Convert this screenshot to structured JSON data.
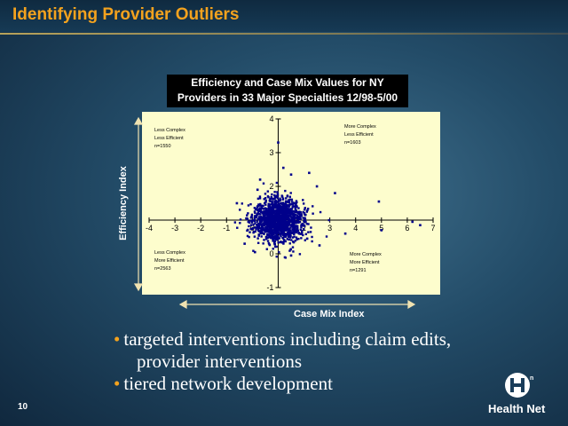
{
  "slide": {
    "title": "Identifying Provider Outliers",
    "number": "10",
    "bullets": [
      {
        "line1": "targeted interventions including claim edits,",
        "line2": "provider interventions"
      },
      {
        "line1": "tiered network development",
        "line2": ""
      }
    ],
    "logo_text": "Health Net"
  },
  "chart_data": {
    "type": "scatter",
    "title": "Efficiency and Case Mix Values for NY Providers in 33 Major Specialties 12/98-5/00",
    "xlabel": "Case Mix Index",
    "ylabel": "Efficiency Index",
    "xlim": [
      -4,
      7
    ],
    "ylim": [
      -1,
      4
    ],
    "x_ticks": [
      "-4",
      "-3",
      "-2",
      "-1",
      "0",
      "1",
      "2",
      "3",
      "4",
      "5",
      "6",
      "7"
    ],
    "y_ticks": [
      "-1",
      "0",
      "1",
      "2",
      "3",
      "4"
    ],
    "grid": false,
    "marker_color": "#00008b",
    "quadrants": [
      {
        "position": "top-left",
        "lines": [
          "Less Complex",
          "Less Efficient",
          "n=1550"
        ]
      },
      {
        "position": "top-right",
        "lines": [
          "More Complex",
          "Less Efficient",
          "n=1603"
        ]
      },
      {
        "position": "bottom-left",
        "lines": [
          "Less Complex",
          "More Efficient",
          "n=2563"
        ]
      },
      {
        "position": "bottom-right",
        "lines": [
          "More Complex",
          "More Efficient",
          "n=1291"
        ]
      }
    ],
    "cluster_center": [
      1,
      1
    ],
    "outliers": [
      {
        "x": 1.0,
        "y": 3.3
      },
      {
        "x": 1.2,
        "y": 2.55
      },
      {
        "x": 1.5,
        "y": 2.35
      },
      {
        "x": 0.3,
        "y": 2.2
      },
      {
        "x": 2.2,
        "y": 2.4
      },
      {
        "x": 2.5,
        "y": 2.0
      },
      {
        "x": 3.2,
        "y": 1.8
      },
      {
        "x": 4.9,
        "y": 1.55
      },
      {
        "x": 6.2,
        "y": 0.95
      },
      {
        "x": 6.5,
        "y": 0.85
      },
      {
        "x": 5.0,
        "y": 0.7
      },
      {
        "x": 3.6,
        "y": 0.6
      },
      {
        "x": -0.3,
        "y": 0.3
      },
      {
        "x": 0.1,
        "y": 0.05
      },
      {
        "x": 2.6,
        "y": 0.25
      },
      {
        "x": 1.5,
        "y": -0.05
      },
      {
        "x": -0.6,
        "y": 1.5
      },
      {
        "x": 0.2,
        "y": 1.9
      }
    ]
  }
}
